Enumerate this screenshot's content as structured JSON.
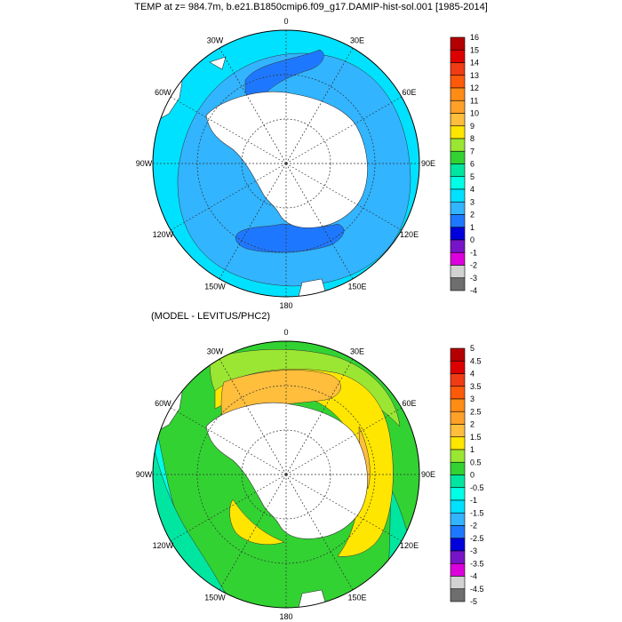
{
  "title": "TEMP at z= 984.7m, b.e21.B1850cmip6.f09_g17.DAMIP-hist-sol.001 [1985-2014]",
  "subtitle": "(MODEL - LEVITUS/PHC2)",
  "longitude_labels": [
    "0",
    "30E",
    "60E",
    "90E",
    "120E",
    "150E",
    "180",
    "150W",
    "120W",
    "90W",
    "60W",
    "30W"
  ],
  "top_colorbar": {
    "labels": [
      "16",
      "15",
      "14",
      "13",
      "12",
      "11",
      "10",
      "9",
      "8",
      "7",
      "6",
      "5",
      "4",
      "3",
      "2",
      "1",
      "0",
      "-1",
      "-2",
      "-3",
      "-4"
    ],
    "colors": [
      "#b40000",
      "#dc0000",
      "#f03c14",
      "#ff5a0a",
      "#ff8c14",
      "#ffa028",
      "#ffbe3c",
      "#ffe600",
      "#9be632",
      "#32d232",
      "#00e6a0",
      "#00ffe6",
      "#00e1ff",
      "#32b4ff",
      "#1e78ff",
      "#0000dc",
      "#7814c8",
      "#dc00dc",
      "#d2d2d2",
      "#6e6e6e"
    ]
  },
  "bottom_colorbar": {
    "labels": [
      "5",
      "4.5",
      "4",
      "3.5",
      "3",
      "2.5",
      "2",
      "1.5",
      "1",
      "0.5",
      "0",
      "-0.5",
      "-1",
      "-1.5",
      "-2",
      "-2.5",
      "-3",
      "-3.5",
      "-4",
      "-4.5",
      "-5"
    ],
    "colors": [
      "#b40000",
      "#dc0000",
      "#f03c14",
      "#ff5a0a",
      "#ff8c14",
      "#ffa028",
      "#ffbe3c",
      "#ffe600",
      "#9be632",
      "#32d232",
      "#00e6a0",
      "#00ffe6",
      "#00e1ff",
      "#32b4ff",
      "#1e78ff",
      "#0000dc",
      "#7814c8",
      "#dc00dc",
      "#d2d2d2",
      "#6e6e6e"
    ]
  },
  "colors": {
    "top_background": "#32b4ff",
    "top_coast_band": "#00e1ff",
    "top_patch": "#1e78ff",
    "bottom_background": "#32d232",
    "bottom_green_light": "#9be632",
    "bottom_yellow": "#ffe600",
    "bottom_orange": "#ffbe3c",
    "bottom_orange_dark": "#ffa028",
    "bottom_cyan": "#00e6a0",
    "bottom_cyan_light": "#00ffe6",
    "land": "#ffffff"
  }
}
